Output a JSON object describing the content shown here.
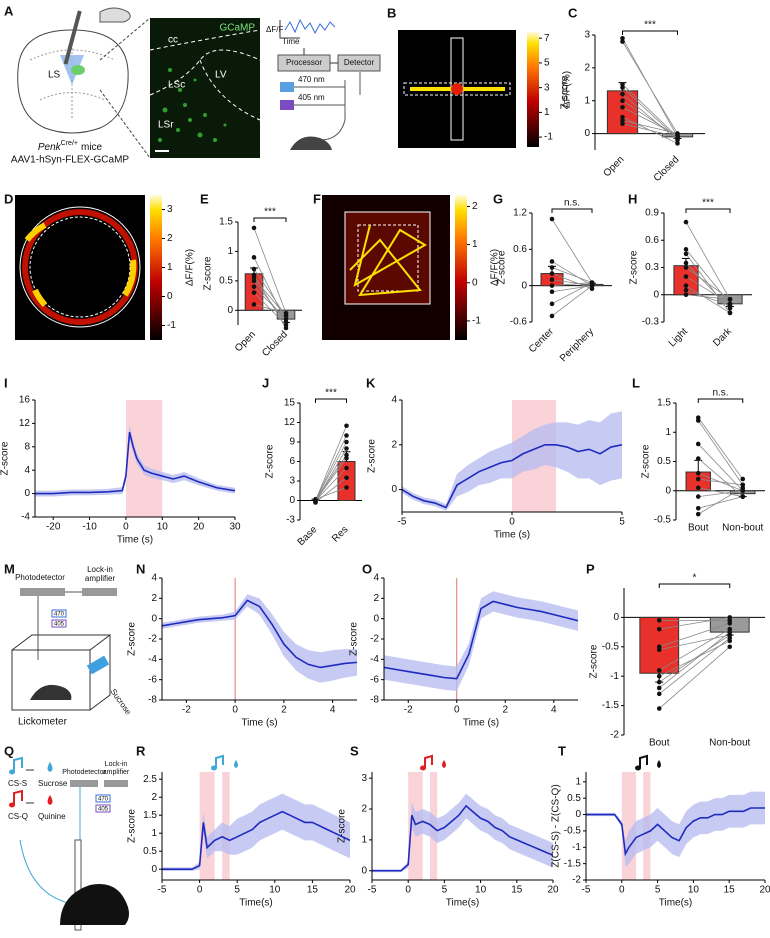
{
  "diagrams": {
    "a": {
      "label": "A",
      "region": "LS",
      "mouse_line": "Penk",
      "mouse_line_sup": "Cre/+",
      "mouse_suffix": "mice",
      "virus": "AAV1-hSyn-FLEX-GCaMP",
      "image_labels": [
        "GCaMP",
        "cc",
        "LV",
        "LSc",
        "LSr"
      ],
      "signal": "ΔF/F",
      "time": "Time",
      "processor": "Processor",
      "detector": "Detector",
      "wavelengths": [
        "470 nm",
        "405 nm"
      ]
    },
    "m": {
      "label": "M",
      "photodetector": "Photodetector",
      "amplifier": [
        "Lock-in",
        "amplifier"
      ],
      "filters": [
        "470",
        "405"
      ],
      "sucrose": "Sucrose",
      "lickometer": "Lickometer"
    },
    "q": {
      "label": "Q",
      "cues": [
        "CS-S",
        "CS-Q"
      ],
      "outcomes": [
        "Sucrose",
        "Quinine"
      ],
      "photodetector": "Photodetector",
      "amplifier": [
        "Lock-in",
        "amplifier"
      ],
      "filters": [
        "470",
        "405"
      ]
    }
  },
  "chart_data": [
    {
      "type": "heatmap",
      "label": "B",
      "colorbar_label": "ΔF/F(%)",
      "clim": [
        -1.8,
        7.5
      ],
      "cticks": [
        -1,
        1,
        3,
        5,
        7
      ]
    },
    {
      "type": "bar",
      "label": "C",
      "ylabel": "Z-score",
      "categories": [
        "Open",
        "Closed"
      ],
      "values": [
        1.3,
        -0.1
      ],
      "errors": [
        0.25,
        0.05
      ],
      "colors": [
        "#e8312a",
        "#9a9a9a"
      ],
      "pairs": [
        [
          2.9,
          -0.1
        ],
        [
          2.8,
          0
        ],
        [
          1.5,
          -0.1
        ],
        [
          1.2,
          -0.2
        ],
        [
          1,
          -0.1
        ],
        [
          0.8,
          -0.05
        ],
        [
          0.5,
          -0.3
        ],
        [
          0.3,
          -0.1
        ],
        [
          1.4,
          -0.15
        ],
        [
          0.4,
          0
        ]
      ],
      "sig": "***",
      "ylim": [
        -0.5,
        3
      ],
      "yticks": [
        0,
        1,
        2,
        3
      ],
      "xtick_rotation": 45
    },
    {
      "type": "heatmap",
      "label": "D",
      "colorbar_label": "ΔF/F(%)",
      "clim": [
        -1.5,
        3.5
      ],
      "cticks": [
        -1,
        0,
        1,
        2,
        3
      ]
    },
    {
      "type": "bar",
      "label": "E",
      "ylabel": "Z-score",
      "categories": [
        "Open",
        "Closed"
      ],
      "values": [
        0.62,
        -0.15
      ],
      "errors": [
        0.1,
        0.06
      ],
      "colors": [
        "#e8312a",
        "#9a9a9a"
      ],
      "pairs": [
        [
          1.4,
          -0.05
        ],
        [
          0.9,
          -0.2
        ],
        [
          0.7,
          -0.1
        ],
        [
          0.6,
          -0.3
        ],
        [
          0.55,
          -0.1
        ],
        [
          0.5,
          -0.2
        ],
        [
          0.4,
          -0.15
        ],
        [
          0.3,
          -0.25
        ],
        [
          0.1,
          -0.05
        ]
      ],
      "sig": "***",
      "ylim": [
        -0.25,
        1.5
      ],
      "yticks": [
        0,
        0.5,
        1,
        1.5
      ],
      "xtick_rotation": 45
    },
    {
      "type": "heatmap",
      "label": "F",
      "colorbar_label": "ΔF/F(%)",
      "clim": [
        -1.5,
        2.3
      ],
      "cticks": [
        -1,
        0,
        1,
        2
      ]
    },
    {
      "type": "bar",
      "label": "G",
      "ylabel": "Z-score",
      "categories": [
        "Center",
        "Periphery"
      ],
      "values": [
        0.2,
        0.02
      ],
      "errors": [
        0.12,
        0.02
      ],
      "colors": [
        "#e8312a",
        "#9a9a9a"
      ],
      "pairs": [
        [
          1.1,
          0.05
        ],
        [
          0.4,
          0
        ],
        [
          0.3,
          0.05
        ],
        [
          0.2,
          -0.05
        ],
        [
          0.1,
          0
        ],
        [
          0,
          0.05
        ],
        [
          -0.1,
          0
        ],
        [
          -0.3,
          0.05
        ],
        [
          -0.5,
          0
        ]
      ],
      "sig": "n.s.",
      "ylim": [
        -0.6,
        1.2
      ],
      "yticks": [
        -0.6,
        0,
        0.6,
        1.2
      ],
      "xtick_rotation": 45
    },
    {
      "type": "bar",
      "label": "H",
      "ylabel": "Z-score",
      "categories": [
        "Light",
        "Dark"
      ],
      "values": [
        0.32,
        -0.1
      ],
      "errors": [
        0.08,
        0.03
      ],
      "colors": [
        "#e8312a",
        "#9a9a9a"
      ],
      "pairs": [
        [
          0.8,
          -0.05
        ],
        [
          0.5,
          -0.1
        ],
        [
          0.45,
          -0.2
        ],
        [
          0.35,
          -0.15
        ],
        [
          0.3,
          -0.05
        ],
        [
          0.2,
          -0.1
        ],
        [
          0.1,
          -0.2
        ],
        [
          0,
          -0.05
        ],
        [
          0.05,
          -0.12
        ]
      ],
      "sig": "***",
      "ylim": [
        -0.3,
        0.9
      ],
      "yticks": [
        -0.3,
        0,
        0.3,
        0.6,
        0.9
      ],
      "xtick_rotation": 45
    },
    {
      "type": "line",
      "label": "I",
      "xlabel": "Time (s)",
      "ylabel": "Z-score",
      "color": "#1f2bbf",
      "band_color": "#b9bdf0",
      "shade_color": "#f9d3d8",
      "shades": [
        [
          0,
          10
        ]
      ],
      "x": [
        -25,
        -20,
        -15,
        -10,
        -5,
        -1,
        0,
        1,
        2,
        3,
        5,
        7,
        10,
        13,
        16,
        20,
        25,
        30
      ],
      "values": [
        0,
        0,
        0.2,
        0.2,
        0.3,
        0.5,
        3,
        10.5,
        8,
        6,
        4,
        3.5,
        3,
        2.5,
        3,
        2,
        1,
        0.5
      ],
      "errors": [
        0.5,
        0.5,
        0.5,
        0.5,
        0.5,
        0.6,
        1,
        1.2,
        1,
        0.9,
        0.8,
        0.8,
        0.7,
        0.7,
        0.7,
        0.6,
        0.5,
        0.5
      ],
      "xlim": [
        -25,
        30
      ],
      "xticks": [
        -20,
        -10,
        0,
        10,
        20,
        30
      ],
      "ylim": [
        -4,
        16
      ],
      "yticks": [
        -4,
        0,
        4,
        8,
        12,
        16
      ]
    },
    {
      "type": "bar",
      "label": "J",
      "ylabel": "Z-score",
      "categories": [
        "Base",
        "Res"
      ],
      "values": [
        0,
        6
      ],
      "errors": [
        0.2,
        1.5
      ],
      "colors": [
        "#9a9a9a",
        "#e8312a"
      ],
      "pairs": [
        [
          0,
          11.5
        ],
        [
          0,
          10
        ],
        [
          0,
          9
        ],
        [
          -0.2,
          8
        ],
        [
          0.1,
          7
        ],
        [
          0,
          5
        ],
        [
          -0.3,
          3.5
        ],
        [
          0.2,
          2
        ],
        [
          0,
          6.5
        ]
      ],
      "sig": "***",
      "ylim": [
        -3,
        15
      ],
      "yticks": [
        -3,
        0,
        3,
        6,
        9,
        12,
        15
      ],
      "xtick_rotation": 45
    },
    {
      "type": "line",
      "label": "K",
      "xlabel": "Time (s)",
      "ylabel": "Z-score",
      "color": "#1f2bbf",
      "band_color": "#b9bdf0",
      "shade_color": "#f9d3d8",
      "shades": [
        [
          0,
          2
        ]
      ],
      "x": [
        -5,
        -4.5,
        -4,
        -3.5,
        -3,
        -2.5,
        -2,
        -1.5,
        -1,
        -0.5,
        0,
        0.5,
        1,
        1.5,
        2,
        2.5,
        3,
        3.5,
        4,
        4.5,
        5
      ],
      "values": [
        0,
        -0.3,
        -0.5,
        -0.6,
        -0.8,
        0.2,
        0.5,
        0.8,
        1,
        1.2,
        1.3,
        1.6,
        1.8,
        2,
        2,
        1.9,
        1.7,
        1.8,
        1.6,
        1.9,
        2
      ],
      "errors": [
        0.15,
        0.15,
        0.15,
        0.15,
        0.15,
        0.5,
        0.6,
        0.6,
        0.7,
        0.7,
        0.8,
        0.8,
        0.9,
        0.9,
        1,
        1.1,
        1.2,
        1.3,
        1.4,
        1.5,
        1.5
      ],
      "xlim": [
        -5,
        5
      ],
      "xticks": [
        -5,
        0,
        5
      ],
      "ylim": [
        -1,
        4
      ],
      "yticks": [
        0,
        2,
        4
      ]
    },
    {
      "type": "bar",
      "label": "L",
      "ylabel": "Z-score",
      "categories": [
        "Bout",
        "Non-bout"
      ],
      "values": [
        0.32,
        -0.05
      ],
      "errors": [
        0.2,
        0.05
      ],
      "colors": [
        "#e8312a",
        "#9a9a9a"
      ],
      "pairs": [
        [
          1.25,
          0.2
        ],
        [
          1.2,
          0.1
        ],
        [
          0.8,
          0
        ],
        [
          0.55,
          -0.1
        ],
        [
          0.3,
          0
        ],
        [
          0.2,
          0.1
        ],
        [
          0.05,
          -0.1
        ],
        [
          -0.1,
          0
        ],
        [
          -0.3,
          -0.1
        ],
        [
          -0.4,
          0.05
        ]
      ],
      "sig": "n.s.",
      "ylim": [
        -0.5,
        1.5
      ],
      "yticks": [
        -0.5,
        0,
        0.5,
        1,
        1.5
      ]
    },
    {
      "type": "line",
      "label": "N",
      "xlabel": "Time (s)",
      "ylabel": "Z-score",
      "color": "#1f2bbf",
      "band_color": "#b9bdf0",
      "vline": 0,
      "vline_color": "#e07070",
      "x": [
        -3,
        -2.5,
        -2,
        -1.5,
        -1,
        -0.5,
        0,
        0.5,
        1,
        1.5,
        2,
        2.5,
        3,
        3.5,
        4,
        4.5,
        5
      ],
      "values": [
        -0.7,
        -0.5,
        -0.3,
        -0.1,
        0,
        0.1,
        0.3,
        1.8,
        1.2,
        -0.5,
        -2.5,
        -3.8,
        -4.5,
        -4.8,
        -4.6,
        -4.4,
        -4.3
      ],
      "errors": [
        0.3,
        0.3,
        0.3,
        0.3,
        0.3,
        0.3,
        0.4,
        0.6,
        0.8,
        1,
        1.2,
        1.3,
        1.4,
        1.5,
        1.5,
        1.4,
        1.3
      ],
      "xlim": [
        -3,
        5
      ],
      "xticks": [
        -2,
        0,
        2,
        4
      ],
      "ylim": [
        -8,
        4
      ],
      "yticks": [
        -8,
        -6,
        -4,
        -2,
        0,
        2,
        4
      ]
    },
    {
      "type": "line",
      "label": "O",
      "xlabel": "Time (s)",
      "ylabel": "Z-score",
      "color": "#1f2bbf",
      "band_color": "#b9bdf0",
      "vline": 0,
      "vline_color": "#e07070",
      "x": [
        -3,
        -2.5,
        -2,
        -1.5,
        -1,
        -0.5,
        0,
        0.5,
        1,
        1.5,
        2,
        2.5,
        3,
        3.5,
        4,
        4.5,
        5
      ],
      "values": [
        -4.8,
        -5,
        -5.2,
        -5.4,
        -5.6,
        -5.8,
        -5.9,
        -3.5,
        1,
        1.7,
        1.4,
        1.1,
        0.9,
        0.7,
        0.4,
        0.1,
        -0.2
      ],
      "errors": [
        1.2,
        1.2,
        1.2,
        1.2,
        1.2,
        1.2,
        1.2,
        1.1,
        1,
        1,
        1,
        1,
        1,
        1,
        1,
        1,
        1
      ],
      "xlim": [
        -3,
        5
      ],
      "xticks": [
        -2,
        0,
        2,
        4
      ],
      "ylim": [
        -8,
        4
      ],
      "yticks": [
        -8,
        -6,
        -4,
        -2,
        0,
        2,
        4
      ]
    },
    {
      "type": "bar",
      "label": "P",
      "ylabel": "Z-score",
      "categories": [
        "Bout",
        "Non-bout"
      ],
      "values": [
        -0.95,
        -0.25
      ],
      "errors": [
        0.15,
        0.05
      ],
      "colors": [
        "#e8312a",
        "#9a9a9a"
      ],
      "pairs": [
        [
          -0.05,
          -0.05
        ],
        [
          -0.2,
          0
        ],
        [
          -0.55,
          -0.3
        ],
        [
          -0.9,
          -0.2
        ],
        [
          -1,
          -0.4
        ],
        [
          -1.1,
          -0.3
        ],
        [
          -1.3,
          -0.35
        ],
        [
          -1.55,
          -0.5
        ],
        [
          -0.5,
          -0.1
        ],
        [
          -1.2,
          -0.25
        ]
      ],
      "sig": "*",
      "ylim": [
        -2,
        0.5
      ],
      "yticks": [
        -2,
        -1.5,
        -1,
        -0.5,
        0
      ]
    },
    {
      "type": "line",
      "label": "R",
      "xlabel": "Time(s)",
      "ylabel": "Z-score",
      "color": "#1f2bbf",
      "band_color": "#b9bdf0",
      "shade_color": "#f9d3d8",
      "shades": [
        [
          0,
          2
        ],
        [
          3,
          4
        ]
      ],
      "x": [
        -5,
        -4,
        -3,
        -2,
        -1,
        0,
        0.5,
        1,
        2,
        3,
        4,
        5,
        6,
        7,
        8,
        9,
        10,
        11,
        12,
        13,
        14,
        15,
        16,
        17,
        18,
        19,
        20
      ],
      "values": [
        0,
        0,
        0,
        0,
        0,
        0.1,
        1.3,
        0.6,
        0.8,
        0.9,
        0.8,
        0.9,
        1,
        1.1,
        1.3,
        1.4,
        1.5,
        1.6,
        1.5,
        1.4,
        1.3,
        1.3,
        1.2,
        1.1,
        1,
        0.9,
        0.8
      ],
      "errors": [
        0.05,
        0.05,
        0.05,
        0.05,
        0.05,
        0.1,
        0.3,
        0.3,
        0.3,
        0.4,
        0.4,
        0.5,
        0.5,
        0.5,
        0.5,
        0.5,
        0.5,
        0.5,
        0.5,
        0.5,
        0.5,
        0.5,
        0.5,
        0.5,
        0.5,
        0.5,
        0.5
      ],
      "xlim": [
        -5,
        20
      ],
      "xticks": [
        -5,
        0,
        5,
        10,
        15,
        20
      ],
      "ylim": [
        -0.3,
        2.7
      ],
      "yticks": [
        0,
        0.5,
        1,
        1.5,
        2,
        2.5
      ]
    },
    {
      "type": "line",
      "label": "S",
      "xlabel": "Time(s)",
      "ylabel": "Z-score",
      "color": "#1f2bbf",
      "band_color": "#b9bdf0",
      "shade_color": "#f9d3d8",
      "shades": [
        [
          0,
          2
        ],
        [
          3,
          4
        ]
      ],
      "x": [
        -5,
        -4,
        -3,
        -2,
        -1,
        0,
        0.5,
        1,
        2,
        3,
        4,
        5,
        6,
        7,
        8,
        9,
        10,
        11,
        12,
        13,
        14,
        15,
        16,
        17,
        18,
        19,
        20
      ],
      "values": [
        0,
        0,
        0,
        0,
        0,
        0.2,
        1.8,
        1.5,
        1.6,
        1.5,
        1.3,
        1.4,
        1.6,
        1.8,
        2.1,
        1.9,
        1.7,
        1.6,
        1.4,
        1.3,
        1.1,
        1,
        0.9,
        0.8,
        0.7,
        0.6,
        0.5
      ],
      "errors": [
        0.05,
        0.05,
        0.05,
        0.05,
        0.05,
        0.1,
        0.4,
        0.4,
        0.4,
        0.4,
        0.4,
        0.4,
        0.4,
        0.4,
        0.4,
        0.4,
        0.4,
        0.4,
        0.4,
        0.4,
        0.4,
        0.4,
        0.4,
        0.4,
        0.4,
        0.4,
        0.4
      ],
      "xlim": [
        -5,
        20
      ],
      "xticks": [
        -5,
        0,
        5,
        10,
        15,
        20
      ],
      "ylim": [
        -0.3,
        3.2
      ],
      "yticks": [
        0,
        1,
        2,
        3
      ]
    },
    {
      "type": "line",
      "label": "T",
      "xlabel": "Time(s)",
      "ylabel": "Z(CS-S) - Z(CS-Q)",
      "color": "#1f2bbf",
      "band_color": "#b9bdf0",
      "shade_color": "#f9d3d8",
      "shades": [
        [
          0,
          2
        ],
        [
          3,
          4
        ]
      ],
      "x": [
        -5,
        -4,
        -3,
        -2,
        -1,
        0,
        0.5,
        1,
        2,
        3,
        4,
        5,
        6,
        7,
        8,
        9,
        10,
        11,
        12,
        13,
        14,
        15,
        16,
        17,
        18,
        19,
        20
      ],
      "values": [
        0,
        0,
        0,
        0,
        0,
        -0.3,
        -1.2,
        -1,
        -0.7,
        -0.6,
        -0.5,
        -0.3,
        -0.5,
        -0.7,
        -0.8,
        -0.4,
        -0.2,
        -0.1,
        -0.1,
        0,
        0,
        0.1,
        0.1,
        0.1,
        0.2,
        0.2,
        0.2
      ],
      "errors": [
        0.05,
        0.05,
        0.05,
        0.05,
        0.05,
        0.1,
        0.4,
        0.5,
        0.5,
        0.5,
        0.5,
        0.5,
        0.5,
        0.5,
        0.5,
        0.5,
        0.5,
        0.5,
        0.5,
        0.5,
        0.5,
        0.5,
        0.5,
        0.5,
        0.5,
        0.5,
        0.5
      ],
      "xlim": [
        -5,
        20
      ],
      "xticks": [
        -5,
        0,
        5,
        10,
        15,
        20
      ],
      "ylim": [
        -2,
        1.3
      ],
      "yticks": [
        -2,
        -1.5,
        -1,
        -0.5,
        0,
        0.5,
        1
      ]
    }
  ]
}
